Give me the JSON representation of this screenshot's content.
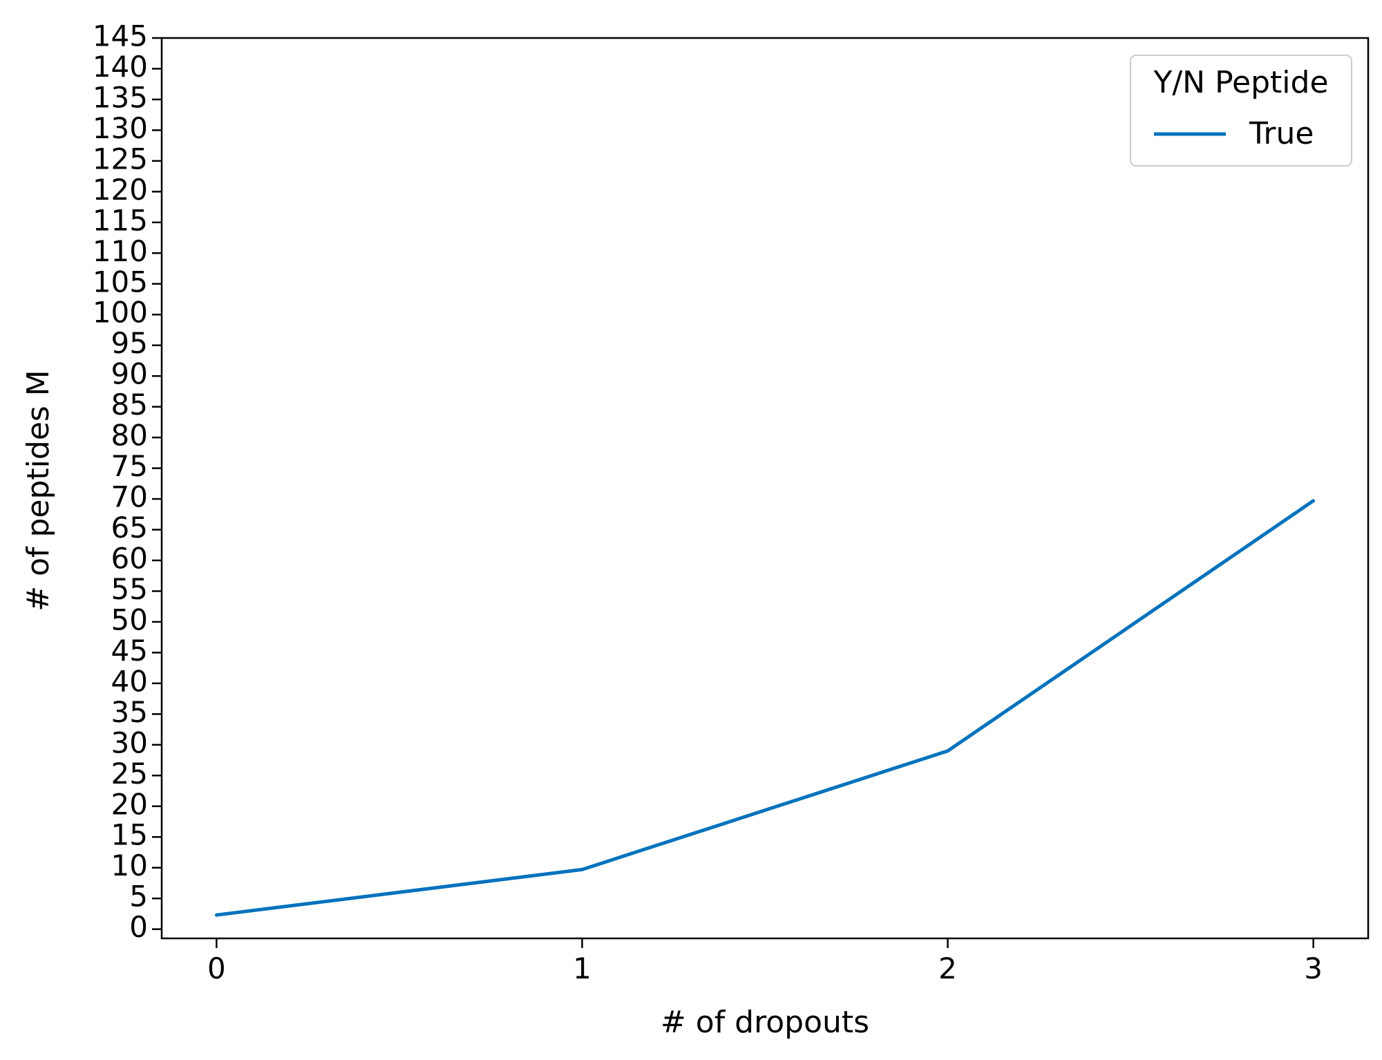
{
  "chart_data": {
    "type": "line",
    "title": "",
    "xlabel": "# of dropouts",
    "ylabel": "# of peptides M",
    "x": [
      0,
      1,
      2,
      3
    ],
    "x_ticks": [
      0,
      1,
      2,
      3
    ],
    "y_ticks": [
      0,
      5,
      10,
      15,
      20,
      25,
      30,
      35,
      40,
      45,
      50,
      55,
      60,
      65,
      70,
      75,
      80,
      85,
      90,
      95,
      100,
      105,
      110,
      115,
      120,
      125,
      130,
      135,
      140,
      145
    ],
    "xlim": [
      -0.15,
      3.15
    ],
    "ylim": [
      -1.5,
      145
    ],
    "grid": false,
    "legend": {
      "title": "Y/N Peptide",
      "placement": "top-right"
    },
    "series": [
      {
        "name": "True",
        "color": "#0072bd",
        "values": [
          2.3,
          9.7,
          29.0,
          69.7
        ]
      }
    ]
  }
}
